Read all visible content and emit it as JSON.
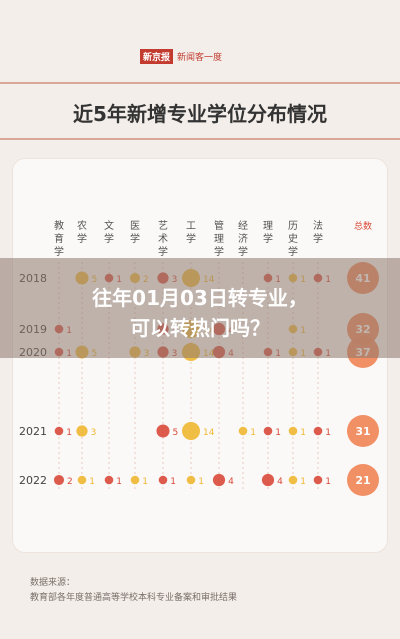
{
  "header": {
    "logo_box": "新京报",
    "logo_text": "新闻客一度",
    "title": "近5年新增专业学位分布情况"
  },
  "headline": {
    "line1": "往年01月03日转专业，",
    "line2": "可以转热门吗？"
  },
  "source": {
    "label": "数据来源：",
    "text": "教育部各年度普通高等学校本科专业备案和审批结果"
  },
  "colors": {
    "accent_red": "#d9493a",
    "accent_yellow": "#f0b731",
    "total_bg": "#f08a5d"
  },
  "chart_data": {
    "type": "scatter",
    "categories": [
      "教育学",
      "农学",
      "文学",
      "医学",
      "艺术学",
      "工学",
      "管理学",
      "经济学",
      "理学",
      "历史学",
      "法学"
    ],
    "total_label": "总数",
    "years": [
      "2018",
      "2019",
      "2020",
      "2021",
      "2022"
    ],
    "values": [
      [
        null,
        5,
        1,
        2,
        3,
        14,
        null,
        null,
        1,
        1,
        1
      ],
      [
        1,
        null,
        null,
        null,
        3,
        14,
        4,
        null,
        null,
        1,
        null
      ],
      [
        1,
        5,
        null,
        3,
        3,
        14,
        4,
        null,
        1,
        1,
        1
      ],
      [
        1,
        3,
        null,
        null,
        5,
        14,
        null,
        1,
        1,
        1,
        1
      ],
      [
        2,
        1,
        1,
        1,
        1,
        1,
        4,
        null,
        4,
        1,
        1
      ]
    ],
    "totals": [
      41,
      32,
      37,
      31,
      21
    ]
  }
}
